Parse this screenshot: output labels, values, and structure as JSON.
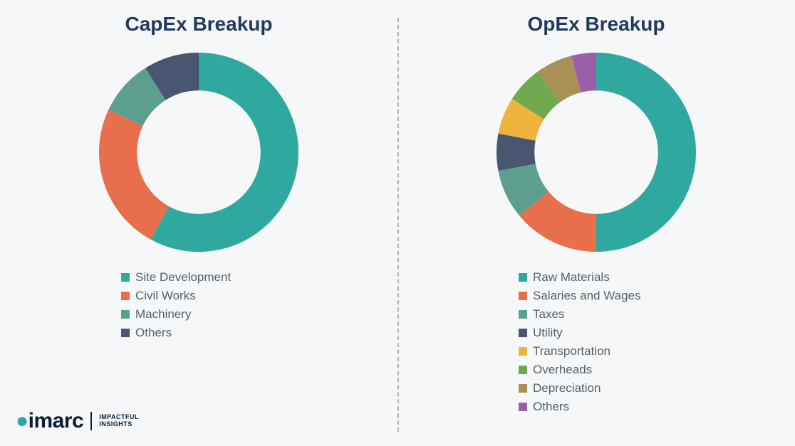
{
  "logo": {
    "brand_prefix": "imarc",
    "tagline_line1": "IMPACTFUL",
    "tagline_line2": "INSIGHTS"
  },
  "capex": {
    "title": "CapEx Breakup",
    "type": "donut",
    "inner_radius_ratio": 0.62,
    "outer_radius": 140,
    "start_angle_deg": 90,
    "direction": "clockwise",
    "background_color": "#f5f7f8",
    "title_color": "#1f3a5a",
    "title_fontsize": 28,
    "legend_fontsize": 17,
    "legend_text_color": "#56606a",
    "slices": [
      {
        "label": "Site Development",
        "value": 58,
        "color": "#2fa99f"
      },
      {
        "label": "Civil Works",
        "value": 24,
        "color": "#e86f4c"
      },
      {
        "label": "Machinery",
        "value": 9,
        "color": "#5d9f8e"
      },
      {
        "label": "Others",
        "value": 9,
        "color": "#4a5670"
      }
    ]
  },
  "opex": {
    "title": "OpEx Breakup",
    "type": "donut",
    "inner_radius_ratio": 0.62,
    "outer_radius": 140,
    "start_angle_deg": 90,
    "direction": "clockwise",
    "background_color": "#f5f7f8",
    "title_color": "#1f3a5a",
    "title_fontsize": 28,
    "legend_fontsize": 17,
    "legend_text_color": "#56606a",
    "slices": [
      {
        "label": "Raw Materials",
        "value": 50,
        "color": "#2fa99f"
      },
      {
        "label": "Salaries and Wages",
        "value": 14,
        "color": "#e86f4c"
      },
      {
        "label": "Taxes",
        "value": 8,
        "color": "#5d9f8e"
      },
      {
        "label": "Utility",
        "value": 6,
        "color": "#4a5670"
      },
      {
        "label": "Transportation",
        "value": 6,
        "color": "#efb33d"
      },
      {
        "label": "Overheads",
        "value": 6,
        "color": "#6fa84f"
      },
      {
        "label": "Depreciation",
        "value": 6,
        "color": "#a88f55"
      },
      {
        "label": "Others",
        "value": 4,
        "color": "#9b5fa8"
      }
    ]
  }
}
